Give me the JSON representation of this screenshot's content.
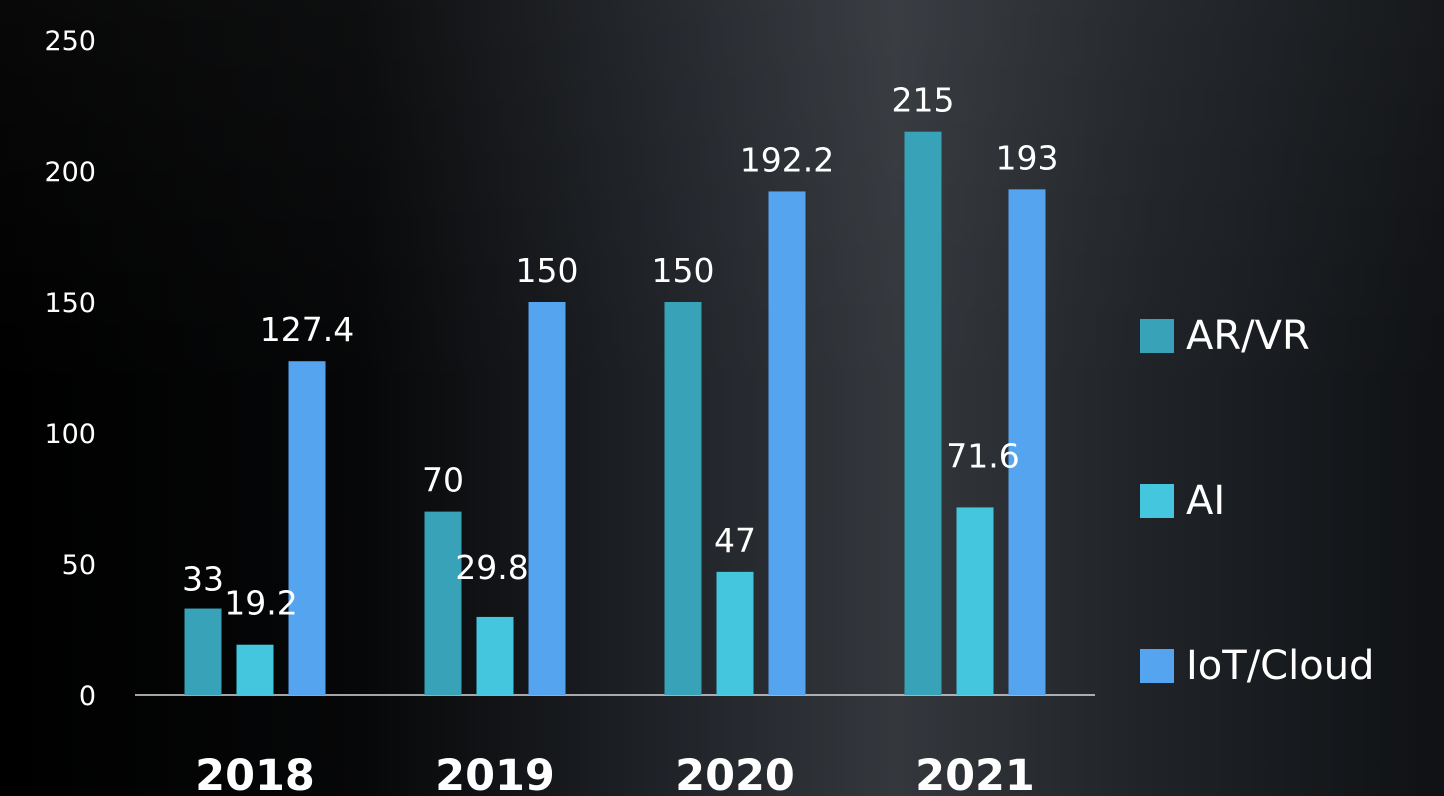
{
  "chart_data": {
    "type": "bar",
    "categories": [
      "2018",
      "2019",
      "2020",
      "2021"
    ],
    "series": [
      {
        "name": "AR/VR",
        "values": [
          33,
          70,
          150,
          215
        ],
        "color": "#38a3b8"
      },
      {
        "name": "AI",
        "values": [
          19.2,
          29.8,
          47,
          71.6
        ],
        "color": "#45c6df"
      },
      {
        "name": "IoT/Cloud",
        "values": [
          127.4,
          150,
          192.2,
          193
        ],
        "color": "#55a4f0"
      }
    ],
    "data_labels": [
      [
        "33",
        "70",
        "150",
        "215"
      ],
      [
        "19.2",
        "29.8",
        "47",
        "71.6"
      ],
      [
        "127.4",
        "150",
        "192.2",
        "193"
      ]
    ],
    "yticks": [
      "0",
      "50",
      "100",
      "150",
      "200",
      "250"
    ],
    "ylim": [
      0,
      250
    ],
    "title": "",
    "xlabel": "",
    "ylabel": "",
    "grid": false,
    "legend_position": "right"
  }
}
